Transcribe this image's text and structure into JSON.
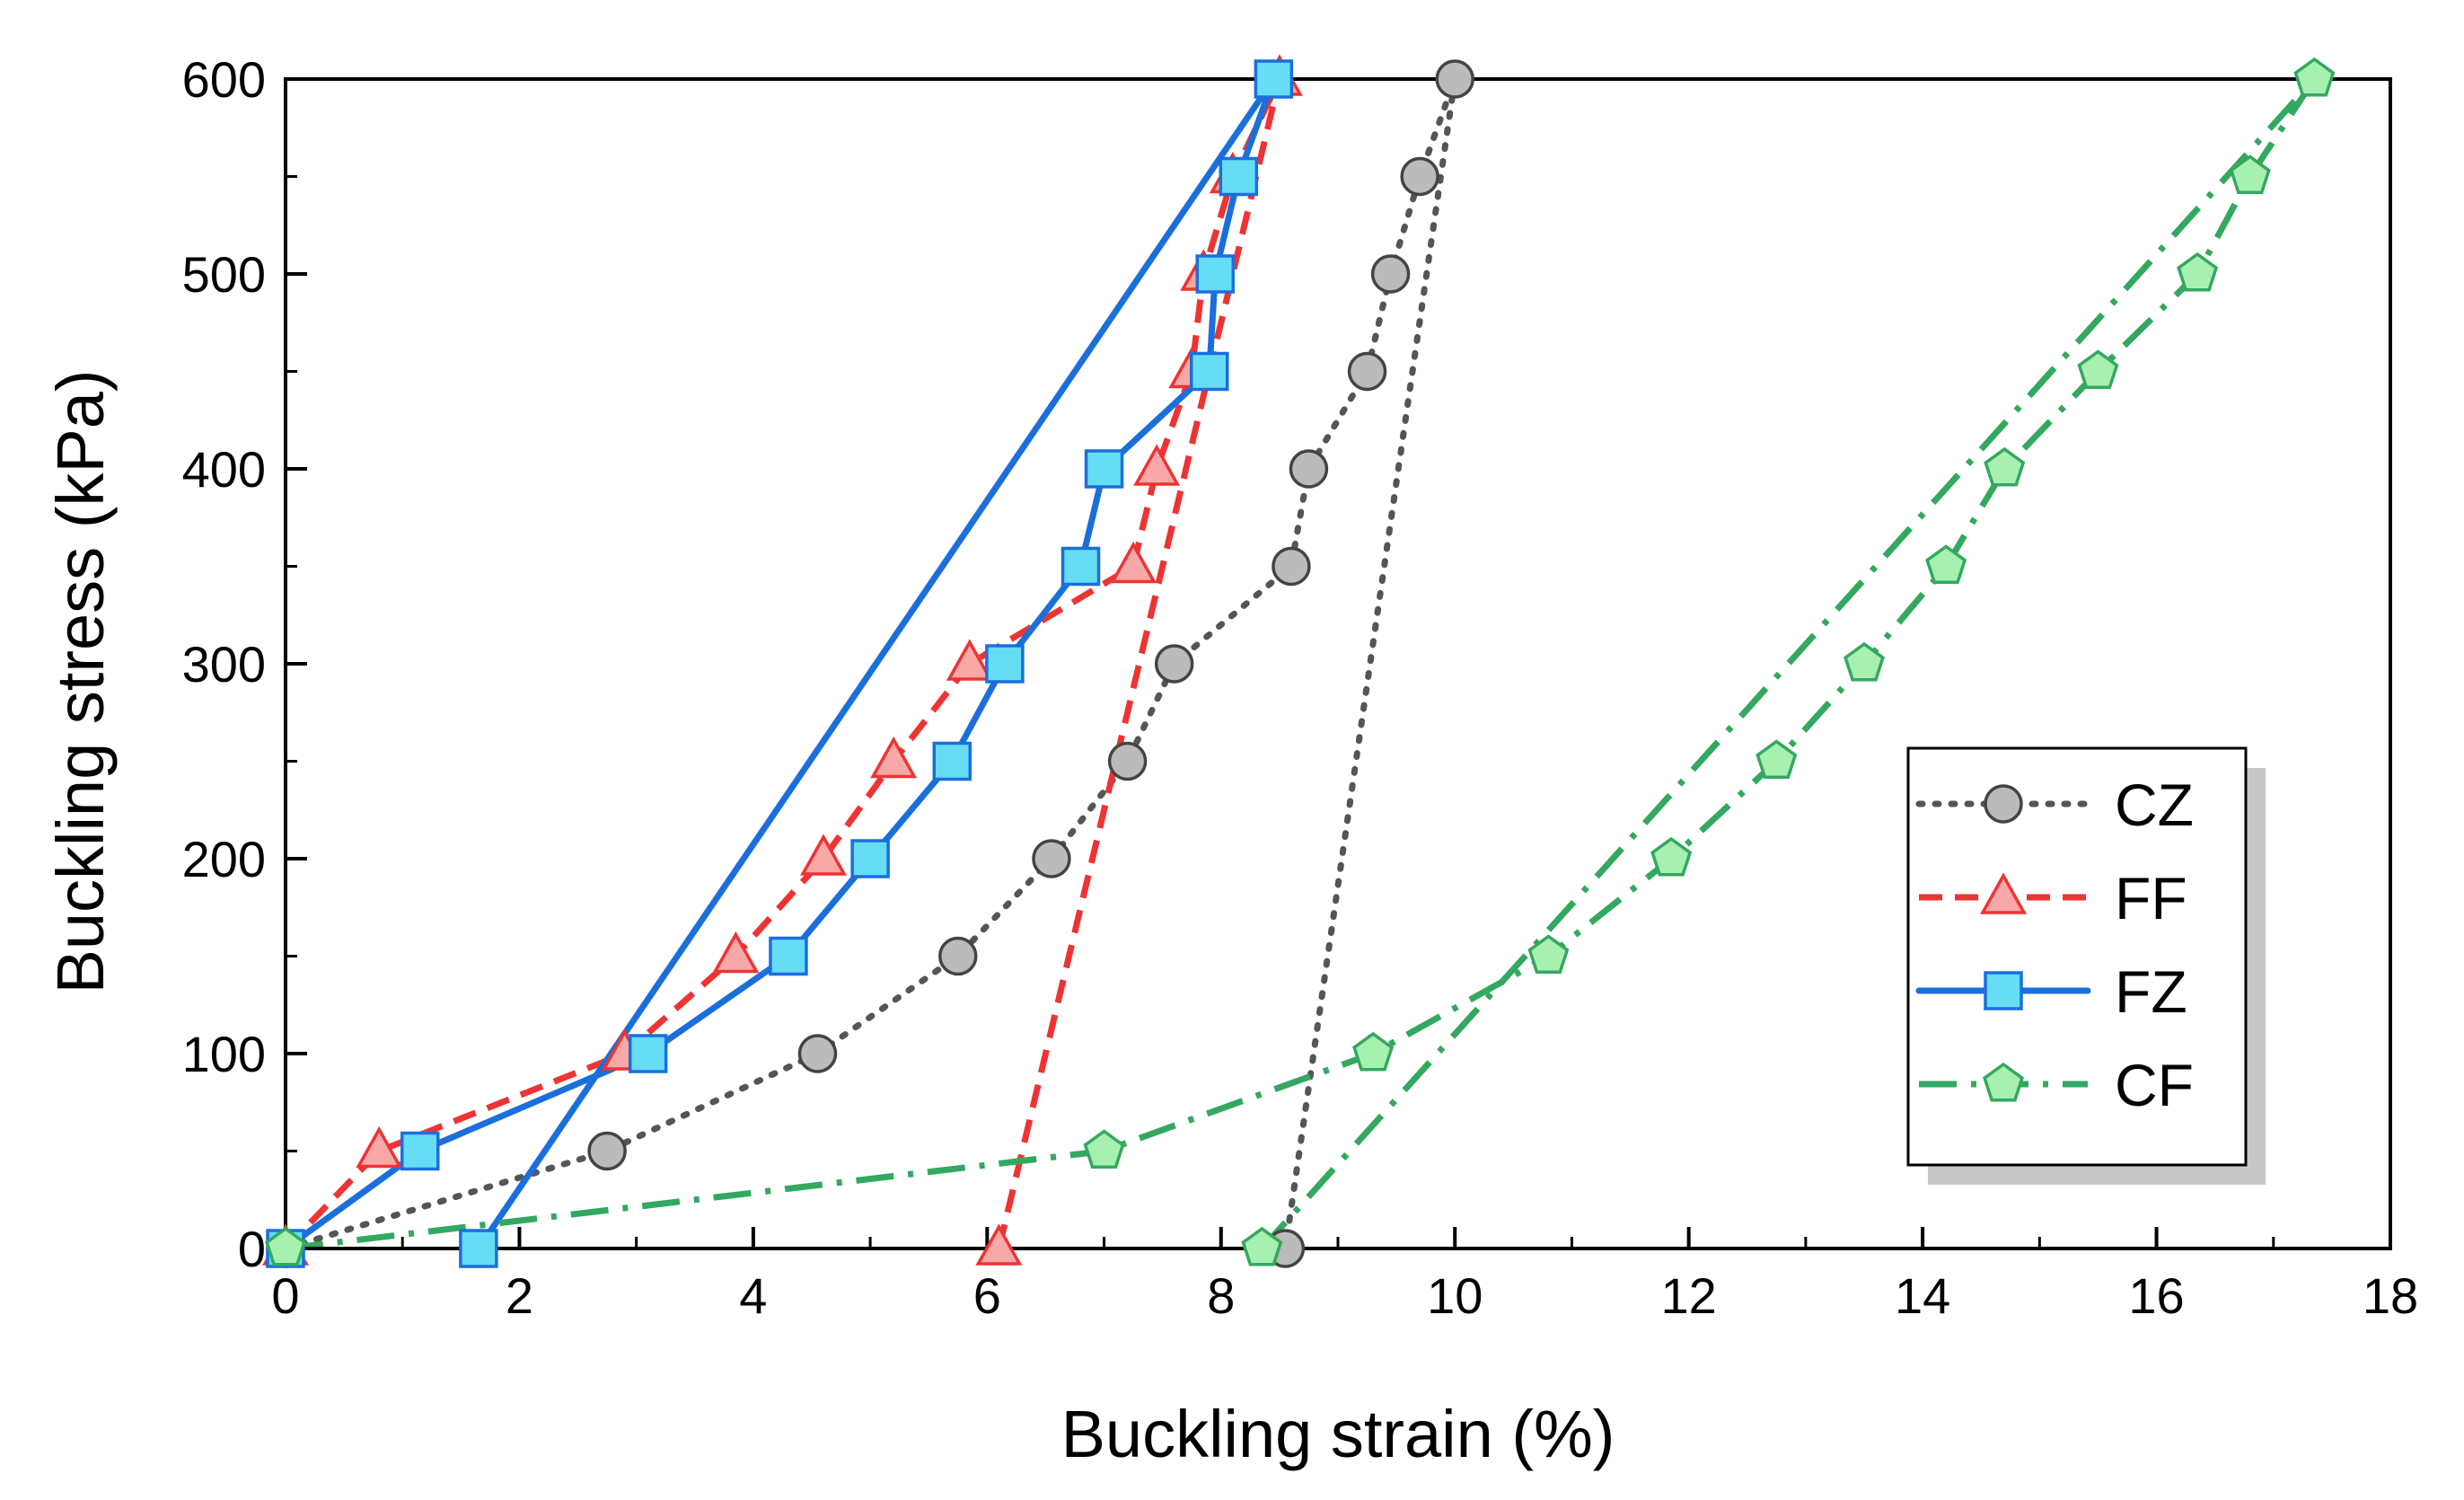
{
  "chart_data": {
    "type": "line",
    "title": "",
    "xlabel": "Buckling strain (%)",
    "ylabel": "Buckling stress (kPa)",
    "xlim": [
      0,
      18
    ],
    "ylim": [
      0,
      600
    ],
    "xticks": [
      "0",
      "2",
      "4",
      "6",
      "8",
      "10",
      "12",
      "14",
      "16",
      "18"
    ],
    "yticks": [
      "0",
      "100",
      "200",
      "300",
      "400",
      "500",
      "600"
    ],
    "grid": false,
    "legend_position": "lower-right",
    "series": [
      {
        "name": "CZ",
        "color": "#555555",
        "marker": "circle",
        "marker_fill": "#bbbbbb",
        "dash": "dotted",
        "markers": [
          [
            0,
            0
          ],
          [
            2.75,
            50
          ],
          [
            4.55,
            100
          ],
          [
            5.75,
            150
          ],
          [
            6.55,
            200
          ],
          [
            7.2,
            250
          ],
          [
            7.6,
            300
          ],
          [
            8.6,
            350
          ],
          [
            8.75,
            400
          ],
          [
            9.25,
            450
          ],
          [
            9.45,
            500
          ],
          [
            9.7,
            550
          ],
          [
            10.0,
            600
          ],
          [
            8.55,
            0
          ]
        ],
        "line": [
          [
            0,
            0
          ],
          [
            2.75,
            50
          ],
          [
            4.55,
            100
          ],
          [
            5.75,
            150
          ],
          [
            6.55,
            200
          ],
          [
            7.2,
            250
          ],
          [
            7.6,
            300
          ],
          [
            8.6,
            350
          ],
          [
            8.75,
            400
          ],
          [
            9.25,
            450
          ],
          [
            9.45,
            500
          ],
          [
            9.7,
            550
          ],
          [
            10.0,
            600
          ],
          [
            8.55,
            0
          ]
        ]
      },
      {
        "name": "FF",
        "color": "#ee3333",
        "marker": "triangle",
        "marker_fill": "#f8a8a8",
        "dash": "dashed",
        "markers": [
          [
            0,
            0
          ],
          [
            0.8,
            50
          ],
          [
            2.9,
            100
          ],
          [
            3.85,
            150
          ],
          [
            4.6,
            200
          ],
          [
            5.2,
            250
          ],
          [
            5.85,
            300
          ],
          [
            7.25,
            350
          ],
          [
            7.45,
            400
          ],
          [
            7.75,
            450
          ],
          [
            7.85,
            500
          ],
          [
            8.1,
            550
          ],
          [
            8.5,
            600
          ],
          [
            6.1,
            0
          ]
        ],
        "line": [
          [
            0,
            0
          ],
          [
            0.8,
            50
          ],
          [
            2.9,
            100
          ],
          [
            3.85,
            150
          ],
          [
            4.6,
            200
          ],
          [
            5.2,
            250
          ],
          [
            5.85,
            300
          ],
          [
            7.25,
            350
          ],
          [
            7.45,
            400
          ],
          [
            7.75,
            450
          ],
          [
            7.85,
            500
          ],
          [
            8.1,
            550
          ],
          [
            8.5,
            600
          ],
          [
            6.1,
            0
          ]
        ]
      },
      {
        "name": "FZ",
        "color": "#1a6fdc",
        "marker": "square",
        "marker_fill": "#66ddf5",
        "dash": "solid",
        "markers": [
          [
            0,
            0
          ],
          [
            1.15,
            50
          ],
          [
            3.1,
            100
          ],
          [
            4.3,
            150
          ],
          [
            5.0,
            200
          ],
          [
            5.7,
            250
          ],
          [
            6.15,
            300
          ],
          [
            6.8,
            350
          ],
          [
            7.0,
            400
          ],
          [
            7.9,
            450
          ],
          [
            7.95,
            500
          ],
          [
            8.15,
            550
          ],
          [
            8.45,
            600
          ],
          [
            1.65,
            0
          ]
        ],
        "line": [
          [
            0,
            0
          ],
          [
            1.15,
            50
          ],
          [
            3.1,
            100
          ],
          [
            4.3,
            150
          ],
          [
            5.0,
            200
          ],
          [
            5.7,
            250
          ],
          [
            6.15,
            300
          ],
          [
            6.8,
            350
          ],
          [
            7.0,
            400
          ],
          [
            7.9,
            450
          ],
          [
            7.95,
            500
          ],
          [
            8.15,
            550
          ],
          [
            8.45,
            600
          ],
          [
            1.65,
            0
          ]
        ]
      },
      {
        "name": "CF",
        "color": "#33a860",
        "marker": "pentagon",
        "marker_fill": "#a8f0b0",
        "dash": "dashdot",
        "markers": [
          [
            0,
            0
          ],
          [
            7.0,
            50
          ],
          [
            9.3,
            100
          ],
          [
            10.8,
            150
          ],
          [
            11.85,
            200
          ],
          [
            12.75,
            250
          ],
          [
            13.5,
            300
          ],
          [
            14.2,
            350
          ],
          [
            14.7,
            400
          ],
          [
            15.5,
            450
          ],
          [
            16.35,
            500
          ],
          [
            16.8,
            550
          ],
          [
            17.35,
            600
          ],
          [
            8.35,
            0
          ]
        ],
        "line": [
          [
            0,
            0
          ],
          [
            7.0,
            50
          ],
          [
            9.3,
            100
          ],
          [
            10.8,
            150
          ],
          [
            11.85,
            200
          ],
          [
            12.75,
            250
          ],
          [
            13.5,
            300
          ],
          [
            14.2,
            350
          ],
          [
            14.7,
            400
          ],
          [
            15.5,
            450
          ],
          [
            16.35,
            500
          ],
          [
            16.8,
            550
          ],
          [
            17.35,
            600
          ],
          [
            8.35,
            0
          ]
        ]
      }
    ]
  }
}
